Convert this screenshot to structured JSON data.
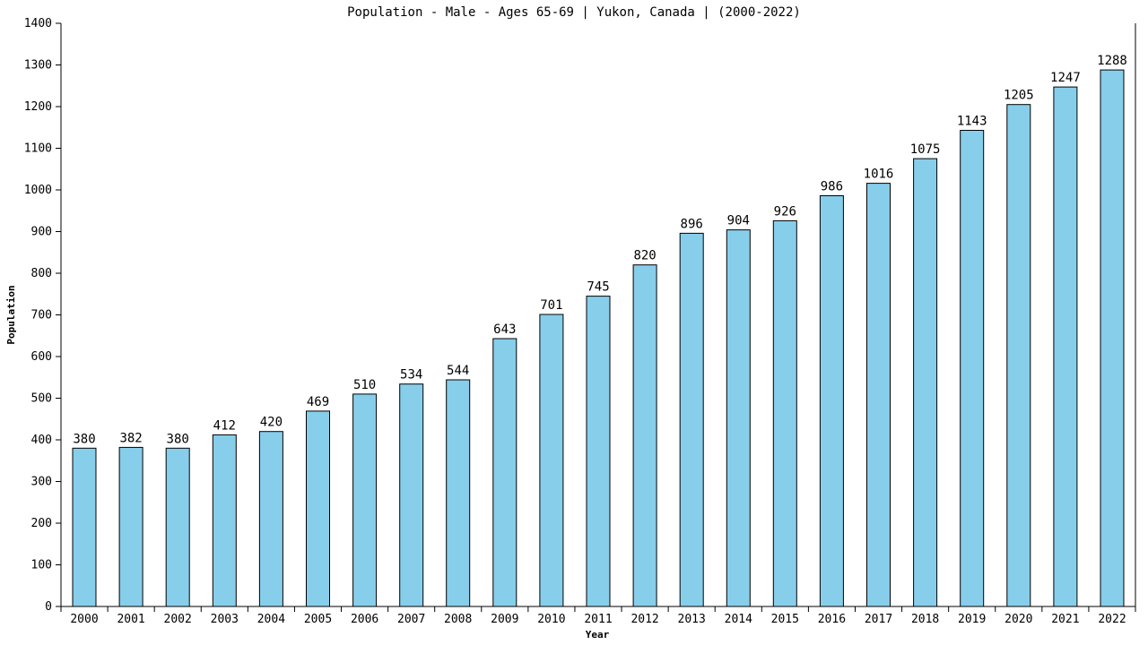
{
  "chart_data": {
    "type": "bar",
    "title": "Population - Male - Ages 65-69 | Yukon, Canada |  (2000-2022)",
    "xlabel": "Year",
    "ylabel": "Population",
    "ylim": [
      0,
      1400
    ],
    "yticks": [
      0,
      100,
      200,
      300,
      400,
      500,
      600,
      700,
      800,
      900,
      1000,
      1100,
      1200,
      1300,
      1400
    ],
    "grid": false,
    "bar_color": "#87ceeb",
    "bar_edge_color": "#000000",
    "categories": [
      "2000",
      "2001",
      "2002",
      "2003",
      "2004",
      "2005",
      "2006",
      "2007",
      "2008",
      "2009",
      "2010",
      "2011",
      "2012",
      "2013",
      "2014",
      "2015",
      "2016",
      "2017",
      "2018",
      "2019",
      "2020",
      "2021",
      "2022"
    ],
    "values": [
      380,
      382,
      380,
      412,
      420,
      469,
      510,
      534,
      544,
      643,
      701,
      745,
      820,
      896,
      904,
      926,
      986,
      1016,
      1075,
      1143,
      1205,
      1247,
      1288
    ]
  }
}
